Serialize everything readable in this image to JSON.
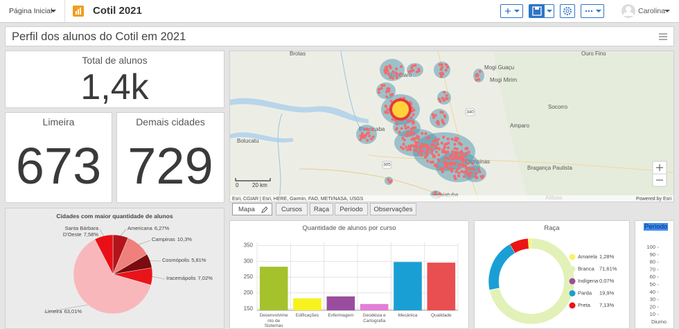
{
  "header": {
    "home_menu": "Página Inicial",
    "title": "Cotil 2021",
    "user": "Carolina"
  },
  "dashboard_title": "Perfil dos alunos do Cotil em 2021",
  "indicators": [
    {
      "title": "Total de alunos",
      "value": 1400,
      "value_label": "1,4k"
    },
    {
      "title": "Limeira",
      "value": 673
    },
    {
      "title": "Demais cidades",
      "value": 729
    }
  ],
  "pie_chart": {
    "type": "pie",
    "title": "Cidades com maior quantidade de alunos",
    "categories": [
      "Americana",
      "Campinas",
      "Cosmópolis",
      "Iracemápolis",
      "Limeira",
      "Santa Bárbara D'Oeste"
    ],
    "values": [
      6.27,
      10.3,
      5.81,
      7.02,
      63.01,
      7.58
    ],
    "value_labels": [
      "6,27%",
      "10,3%",
      "5,81%",
      "7,02%",
      "63,01%",
      "7,58%"
    ],
    "colors": [
      "#b3141c",
      "#f0807c",
      "#7a0b0e",
      "#e8141a",
      "#f8b8bb",
      "#e90f16"
    ]
  },
  "map": {
    "place_labels": [
      "Brotas",
      "Ouro Fino",
      "Rio Claro",
      "Mogi Guaçu",
      "Mogi Mirim",
      "Socorro",
      "Amparo",
      "Piracicaba",
      "Botucatu",
      "Campinas",
      "Bragança Paulista",
      "Indaiatuba",
      "Atibaia"
    ],
    "road_labels": [
      "340",
      "305"
    ],
    "scale_labels": [
      "0",
      "20 km"
    ],
    "attribution": "Esri, CGIAR | Esri, HERE, Garmin, FAO, METI/NASA, USGS",
    "powered_by": "Powered by Esri"
  },
  "tabs": [
    "Mapa",
    "Cursos",
    "Raça",
    "Período",
    "Observações"
  ],
  "bar_chart": {
    "type": "bar",
    "title": "Quantidade de alunos por curso",
    "categories": [
      "Desenvolvimento de Sistemas",
      "Edificações",
      "Enfermagem",
      "Geodésia e Cartografia",
      "Mecânica",
      "Qualidade"
    ],
    "values": [
      283,
      183,
      189,
      165,
      298,
      296
    ],
    "colors": [
      "#a5c22d",
      "#f7f21f",
      "#9a4d9e",
      "#e47fd6",
      "#1a9fd5",
      "#e94f50"
    ],
    "ylim": [
      145,
      360
    ],
    "yticks": [
      150,
      200,
      250,
      300,
      350
    ],
    "grid": true
  },
  "donut_chart": {
    "type": "donut",
    "title": "Raça",
    "categories": [
      "Amarela",
      "Branca",
      "Indígena",
      "Parda",
      "Preta"
    ],
    "values": [
      1.28,
      71.61,
      0.07,
      19.9,
      7.13
    ],
    "value_labels": [
      "1,28%",
      "71,61%",
      "0,07%",
      "19,9%",
      "7,13%"
    ],
    "colors": [
      "#f6f46a",
      "#e2f1b8",
      "#9a4d9e",
      "#1a9fd5",
      "#ea1414"
    ]
  },
  "period_chart": {
    "type": "bar",
    "title": "Período",
    "categories": [
      "Diurno"
    ],
    "ylim": [
      0,
      100
    ],
    "yticks": [
      10,
      20,
      30,
      40,
      50,
      60,
      70,
      80,
      90,
      100
    ]
  }
}
